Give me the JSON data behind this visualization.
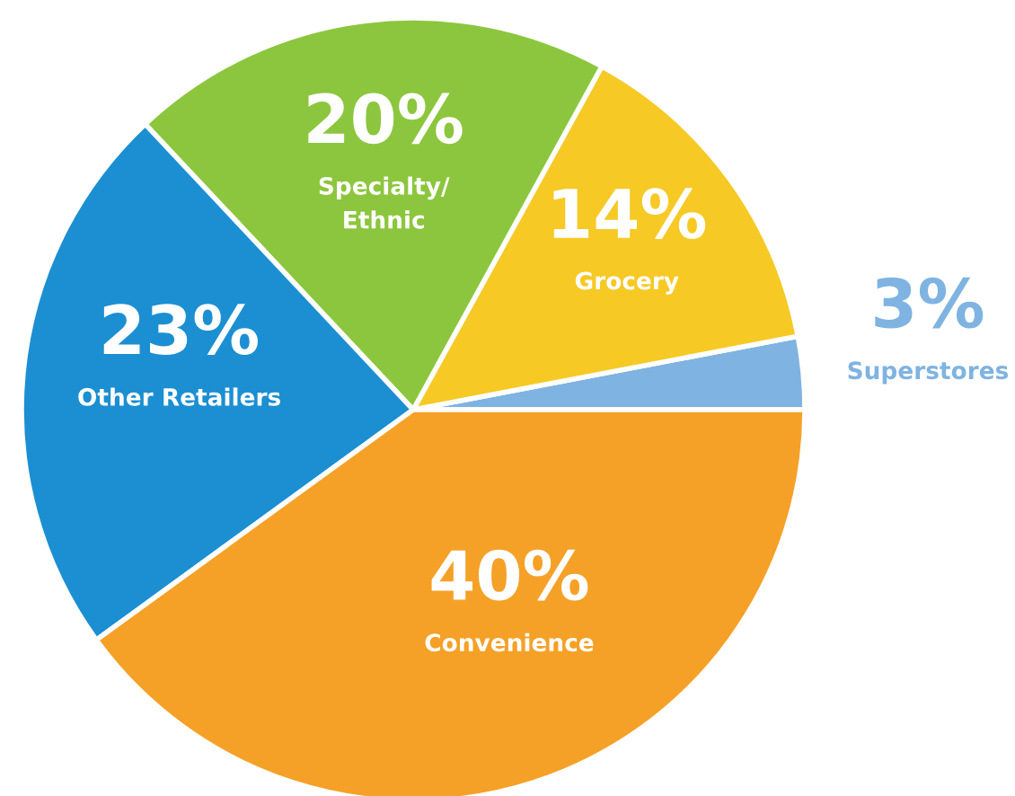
{
  "chart_data": {
    "type": "pie",
    "categories": [
      "Superstores",
      "Grocery",
      "Specialty/\nEthnic",
      "Other Retailers",
      "Convenience"
    ],
    "values": [
      3,
      14,
      20,
      23,
      40
    ],
    "value_labels": [
      "3%",
      "14%",
      "20%",
      "23%",
      "40%"
    ],
    "colors": [
      "#7fb3e1",
      "#f6c925",
      "#8cc63e",
      "#1b8fd2",
      "#f5a127"
    ],
    "legend": false
  }
}
